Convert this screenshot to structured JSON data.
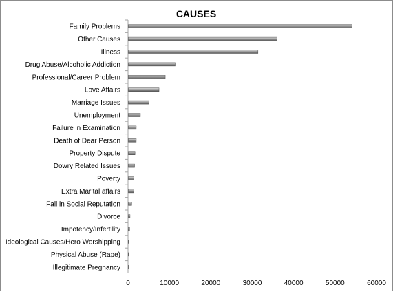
{
  "chart_data": {
    "type": "bar",
    "orientation": "horizontal",
    "title": "CAUSES",
    "xlabel": "",
    "ylabel": "",
    "xlim": [
      0,
      60000
    ],
    "x_ticks": [
      0,
      10000,
      20000,
      30000,
      40000,
      50000,
      60000
    ],
    "grid": false,
    "legend": false,
    "bar_color": "#8a8a8a",
    "categories": [
      "Family Problems",
      "Other Causes",
      "Illness",
      "Drug Abuse/Alcoholic Addiction",
      "Professional/Career Problem",
      "Love Affairs",
      "Marriage Issues",
      "Unemployment",
      "Failure in Examination",
      "Death of Dear Person",
      "Property Dispute",
      "Dowry Related Issues",
      "Poverty",
      "Extra Marital affairs",
      "Fall in Social Reputation",
      "Divorce",
      "Impotency/Infertility",
      "Ideological Causes/Hero Worshipping",
      "Physical Abuse (Rape)",
      "Illegitimate Pregnancy"
    ],
    "values": [
      54000,
      35900,
      31300,
      11300,
      8900,
      7400,
      5000,
      2900,
      1900,
      1900,
      1600,
      1500,
      1300,
      1300,
      800,
      400,
      300,
      50,
      50,
      30
    ]
  }
}
